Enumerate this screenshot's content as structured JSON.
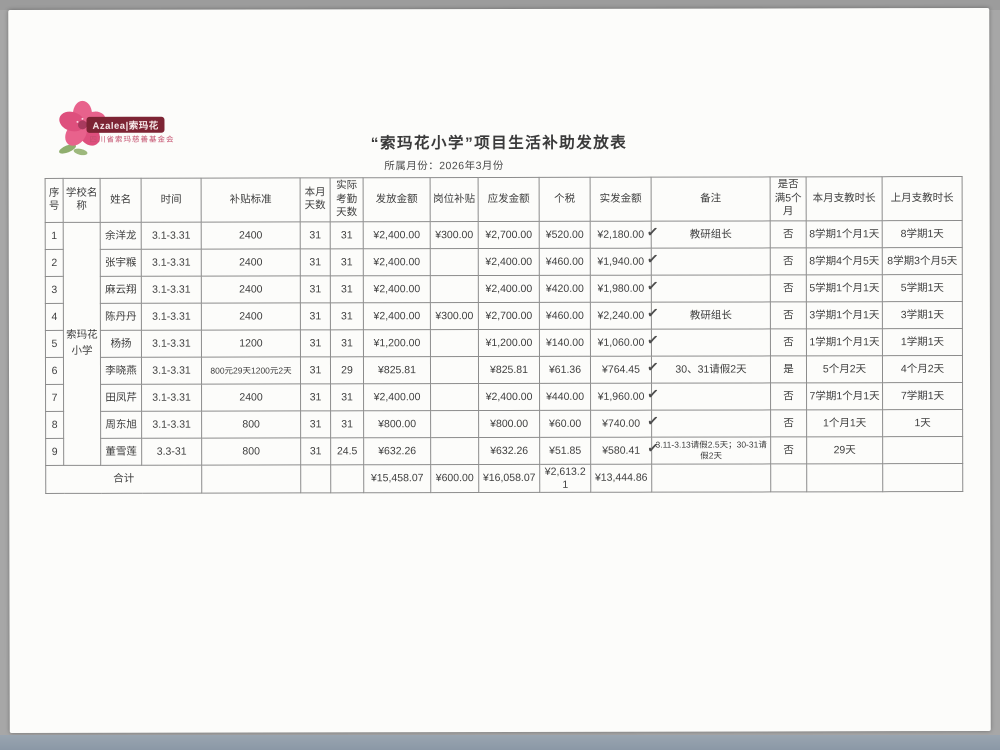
{
  "page": {
    "background_color": "#a7a7a7",
    "paper_color": "#fcfcfa"
  },
  "logo": {
    "badge_text": "Azalea|索玛花",
    "org_name": "四川省索玛慈善基金会",
    "flower_color": "#e8628c",
    "badge_color": "#7d2434"
  },
  "header": {
    "title": "“索玛花小学”项目生活补助发放表",
    "subtitle": "所属月份：2026年3月份"
  },
  "table": {
    "check_glyph": "✓",
    "school_name": "索玛花小学",
    "headers": [
      "序号",
      "学校名称",
      "姓名",
      "时间",
      "补贴标准",
      "本月天数",
      "实际考勤天数",
      "发放金额",
      "岗位补贴",
      "应发金额",
      "个税",
      "实发金额",
      "备注",
      "是否满5个月",
      "本月支教时长",
      "上月支教时长"
    ],
    "rows": [
      {
        "no": "1",
        "name": "余洋龙",
        "time": "3.1-3.31",
        "standard": "2400",
        "month_days": "31",
        "attend_days": "31",
        "grant": "¥2,400.00",
        "post": "¥300.00",
        "payable": "¥2,700.00",
        "tax": "¥520.00",
        "actual": "¥2,180.00",
        "check": true,
        "remark": "教研组长",
        "five": "否",
        "this_month": "8学期1个月1天",
        "last_month": "8学期1天"
      },
      {
        "no": "2",
        "name": "张宇糇",
        "time": "3.1-3.31",
        "standard": "2400",
        "month_days": "31",
        "attend_days": "31",
        "grant": "¥2,400.00",
        "post": "",
        "payable": "¥2,400.00",
        "tax": "¥460.00",
        "actual": "¥1,940.00",
        "check": true,
        "remark": "",
        "five": "否",
        "this_month": "8学期4个月5天",
        "last_month": "8学期3个月5天"
      },
      {
        "no": "3",
        "name": "麻云翔",
        "time": "3.1-3.31",
        "standard": "2400",
        "month_days": "31",
        "attend_days": "31",
        "grant": "¥2,400.00",
        "post": "",
        "payable": "¥2,400.00",
        "tax": "¥420.00",
        "actual": "¥1,980.00",
        "check": true,
        "remark": "",
        "five": "否",
        "this_month": "5学期1个月1天",
        "last_month": "5学期1天"
      },
      {
        "no": "4",
        "name": "陈丹丹",
        "time": "3.1-3.31",
        "standard": "2400",
        "month_days": "31",
        "attend_days": "31",
        "grant": "¥2,400.00",
        "post": "¥300.00",
        "payable": "¥2,700.00",
        "tax": "¥460.00",
        "actual": "¥2,240.00",
        "check": true,
        "remark": "教研组长",
        "five": "否",
        "this_month": "3学期1个月1天",
        "last_month": "3学期1天"
      },
      {
        "no": "5",
        "name": "杨扬",
        "time": "3.1-3.31",
        "standard": "1200",
        "month_days": "31",
        "attend_days": "31",
        "grant": "¥1,200.00",
        "post": "",
        "payable": "¥1,200.00",
        "tax": "¥140.00",
        "actual": "¥1,060.00",
        "check": true,
        "remark": "",
        "five": "否",
        "this_month": "1学期1个月1天",
        "last_month": "1学期1天"
      },
      {
        "no": "6",
        "name": "李晓燕",
        "time": "3.1-3.31",
        "standard": "800元29天1200元2天",
        "month_days": "31",
        "attend_days": "29",
        "grant": "¥825.81",
        "post": "",
        "payable": "¥825.81",
        "tax": "¥61.36",
        "actual": "¥764.45",
        "check": true,
        "remark": "30、31请假2天",
        "five": "是",
        "this_month": "5个月2天",
        "last_month": "4个月2天"
      },
      {
        "no": "7",
        "name": "田凤芹",
        "time": "3.1-3.31",
        "standard": "2400",
        "month_days": "31",
        "attend_days": "31",
        "grant": "¥2,400.00",
        "post": "",
        "payable": "¥2,400.00",
        "tax": "¥440.00",
        "actual": "¥1,960.00",
        "check": true,
        "remark": "",
        "five": "否",
        "this_month": "7学期1个月1天",
        "last_month": "7学期1天"
      },
      {
        "no": "8",
        "name": "周东旭",
        "time": "3.1-3.31",
        "standard": "800",
        "month_days": "31",
        "attend_days": "31",
        "grant": "¥800.00",
        "post": "",
        "payable": "¥800.00",
        "tax": "¥60.00",
        "actual": "¥740.00",
        "check": true,
        "remark": "",
        "five": "否",
        "this_month": "1个月1天",
        "last_month": "1天"
      },
      {
        "no": "9",
        "name": "董雪莲",
        "time": "3.3-31",
        "standard": "800",
        "month_days": "31",
        "attend_days": "24.5",
        "grant": "¥632.26",
        "post": "",
        "payable": "¥632.26",
        "tax": "¥51.85",
        "actual": "¥580.41",
        "check": true,
        "remark": "3.11-3.13请假2.5天；30-31请假2天",
        "five": "否",
        "this_month": "29天",
        "last_month": ""
      }
    ],
    "total": {
      "label": "合计",
      "standard": "",
      "month_days": "",
      "attend_days": "",
      "grant": "¥15,458.07",
      "post": "¥600.00",
      "payable": "¥16,058.07",
      "tax": "¥2,613.21",
      "actual": "¥13,444.86",
      "remark": "",
      "five": "",
      "this_month": "",
      "last_month": ""
    }
  }
}
